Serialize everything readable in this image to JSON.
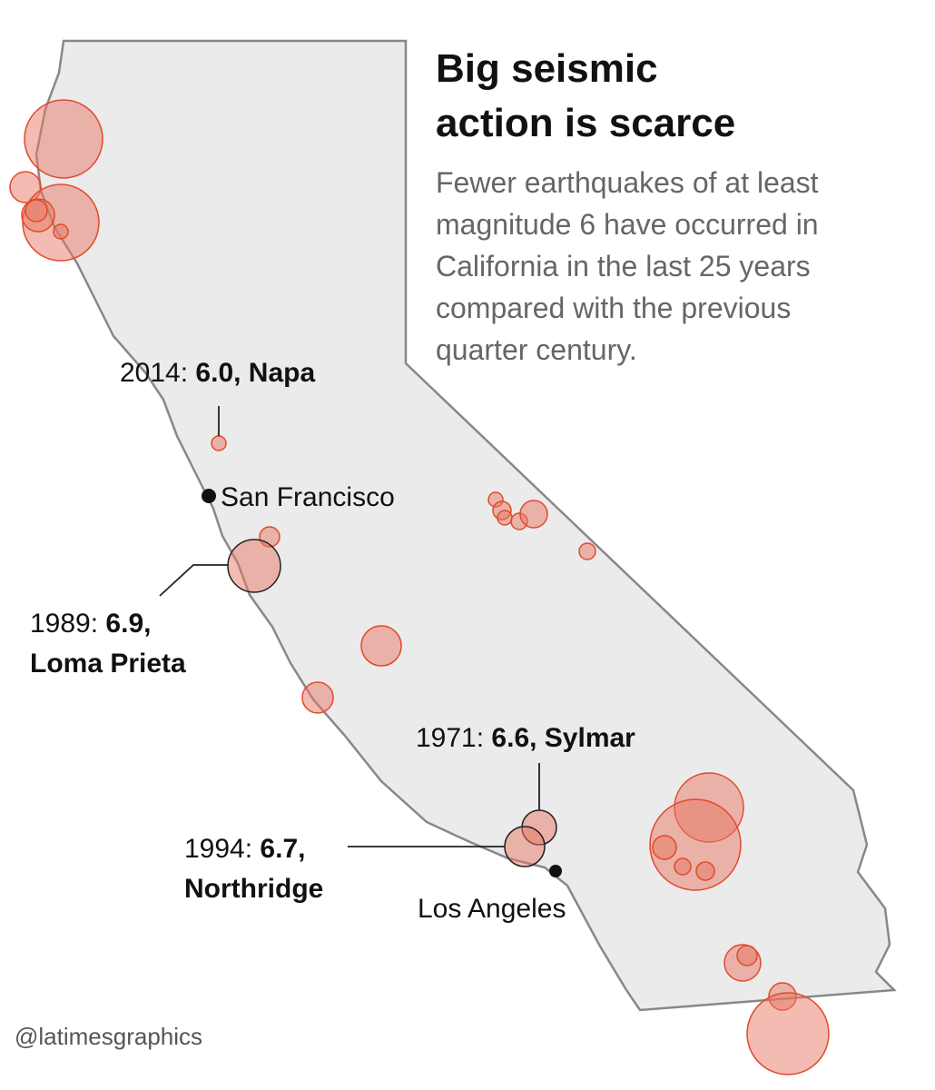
{
  "title": [
    "Big seismic",
    "action is scarce"
  ],
  "subtitle": [
    "Fewer earthquakes of at least",
    "magnitude 6 have occurred in",
    "California in the last 25 years",
    "compared with the previous",
    "quarter century."
  ],
  "quakes": [
    {
      "year": "2014:",
      "lines": [
        "6.0, Napa"
      ]
    },
    {
      "year": "1989:",
      "lines": [
        "6.9,",
        "Loma Prieta"
      ]
    },
    {
      "year": "1971:",
      "lines": [
        "6.6, Sylmar"
      ]
    },
    {
      "year": "1994:",
      "lines": [
        "6.7,",
        "Northridge"
      ]
    }
  ],
  "cities": [
    "San Francisco",
    "Los Angeles"
  ],
  "credit": "@latimesgraphics"
}
